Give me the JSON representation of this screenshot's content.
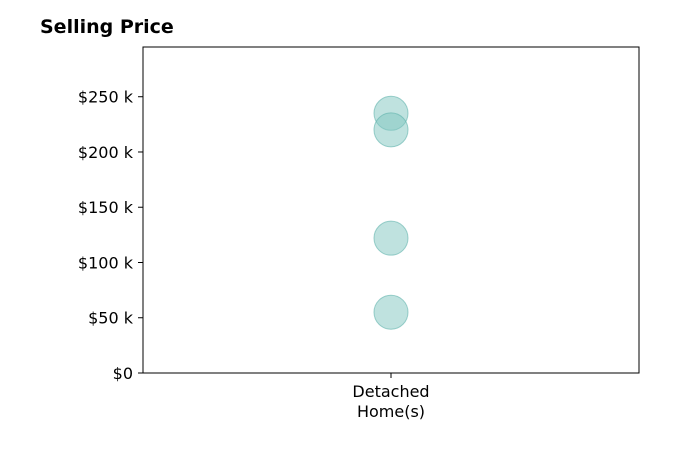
{
  "chart_data": {
    "type": "scatter",
    "title": "Selling Price",
    "xlabel": "",
    "ylabel": "",
    "categories": [
      "Detached\nHome(s)"
    ],
    "series": [
      {
        "category": "Detached\nHome(s)",
        "values": [
          235000,
          220000,
          122000,
          55000
        ]
      }
    ],
    "ylim": [
      0,
      295000
    ],
    "yticks": [
      {
        "value": 0,
        "label": "$0"
      },
      {
        "value": 50000,
        "label": "$50 k"
      },
      {
        "value": 100000,
        "label": "$100 k"
      },
      {
        "value": 150000,
        "label": "$150 k"
      },
      {
        "value": 200000,
        "label": "$200 k"
      },
      {
        "value": 250000,
        "label": "$250 k"
      }
    ],
    "grid": false,
    "legend": "none",
    "colors": {
      "marker_fill": "#80c6c0",
      "marker_stroke": "#5fb3ac",
      "axis": "#000000"
    }
  }
}
